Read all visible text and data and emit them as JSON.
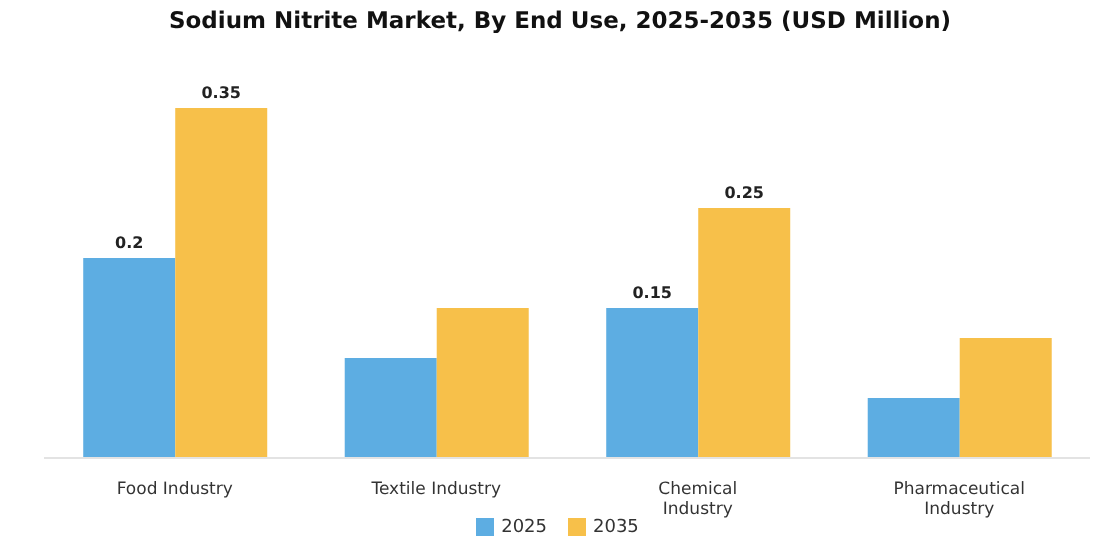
{
  "chart_data": {
    "type": "bar",
    "title": "Sodium Nitrite Market, By End Use, 2025-2035 (USD Million)",
    "categories": [
      "Food Industry",
      "Textile Industry",
      "Chemical Industry",
      "Pharmaceutical Industry"
    ],
    "series": [
      {
        "name": "2025",
        "color": "#5dade2",
        "values": [
          0.2,
          0.1,
          0.15,
          0.06
        ],
        "value_labels": [
          "0.2",
          null,
          "0.15",
          null
        ]
      },
      {
        "name": "2035",
        "color": "#f7c04a",
        "values": [
          0.35,
          0.15,
          0.25,
          0.12
        ],
        "value_labels": [
          "0.35",
          null,
          "0.25",
          null
        ]
      }
    ],
    "ylim": [
      0,
      0.35
    ],
    "grid": false,
    "legend": "bottom"
  }
}
